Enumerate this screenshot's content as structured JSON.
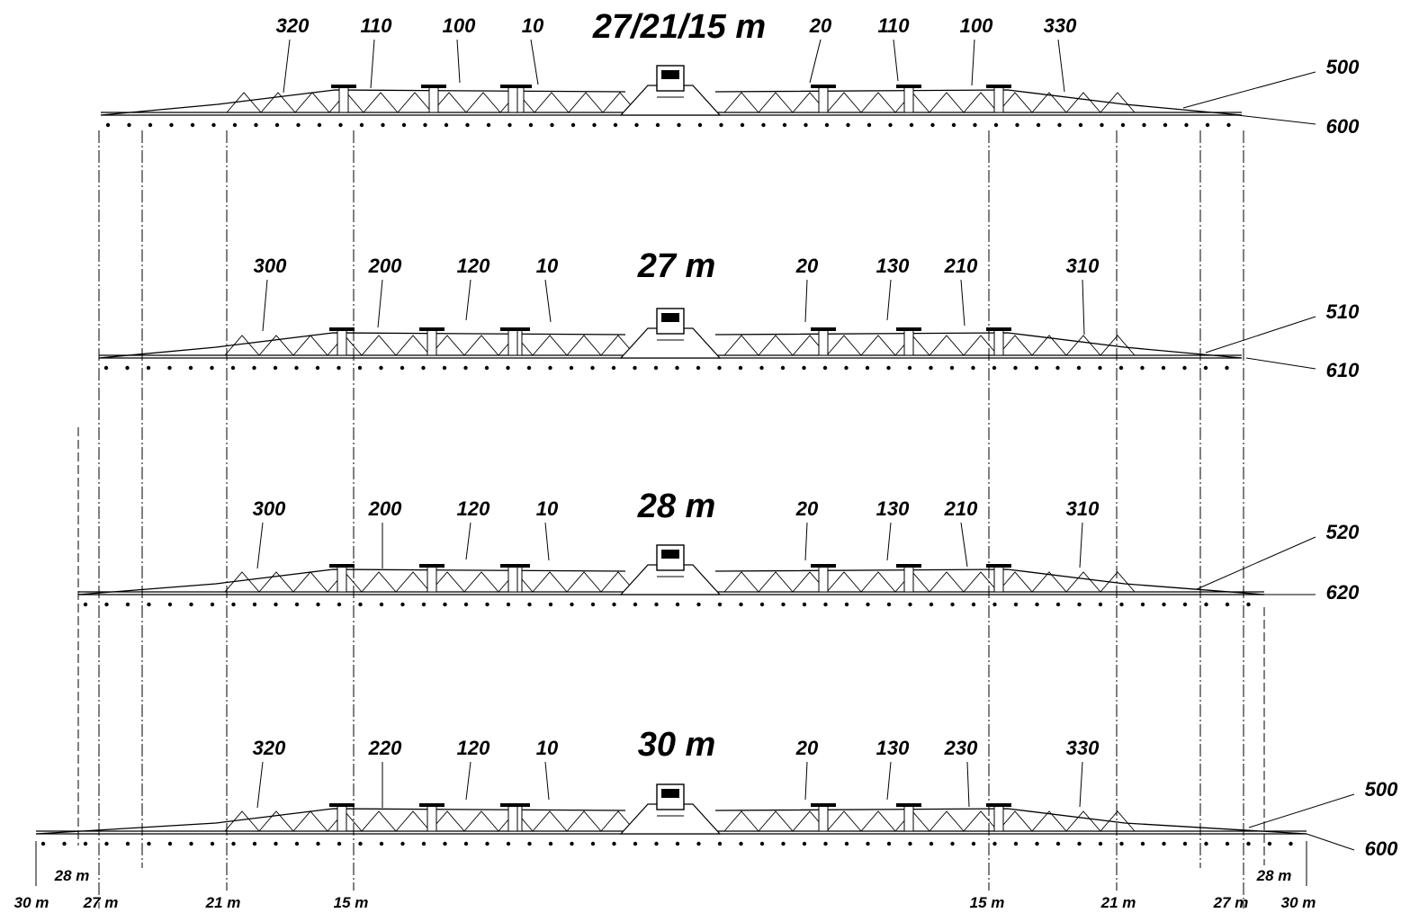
{
  "variants": [
    {
      "id": "27-21-15",
      "title": "27/21/15 m",
      "left_labels": [
        "320",
        "110",
        "100",
        "10"
      ],
      "right_labels": [
        "20",
        "110",
        "100",
        "330"
      ],
      "end_labels": [
        "500",
        "600"
      ]
    },
    {
      "id": "27",
      "title": "27 m",
      "left_labels": [
        "300",
        "200",
        "120",
        "10"
      ],
      "right_labels": [
        "20",
        "130",
        "210",
        "310"
      ],
      "end_labels": [
        "510",
        "610"
      ]
    },
    {
      "id": "28",
      "title": "28 m",
      "left_labels": [
        "300",
        "200",
        "120",
        "10"
      ],
      "right_labels": [
        "20",
        "130",
        "210",
        "310"
      ],
      "end_labels": [
        "520",
        "620"
      ]
    },
    {
      "id": "30",
      "title": "30 m",
      "left_labels": [
        "320",
        "220",
        "120",
        "10"
      ],
      "right_labels": [
        "20",
        "130",
        "230",
        "330"
      ],
      "end_labels": [
        "500",
        "600"
      ]
    }
  ],
  "width_marks": {
    "left_upper": [
      "28 m"
    ],
    "left_lower": [
      "30 m",
      "27 m",
      "21 m",
      "15 m"
    ],
    "right_lower": [
      "15 m",
      "21 m",
      "27 m",
      "30 m"
    ],
    "right_upper": [
      "28 m"
    ]
  },
  "colors": {
    "line": "#000000",
    "background": "#ffffff"
  }
}
